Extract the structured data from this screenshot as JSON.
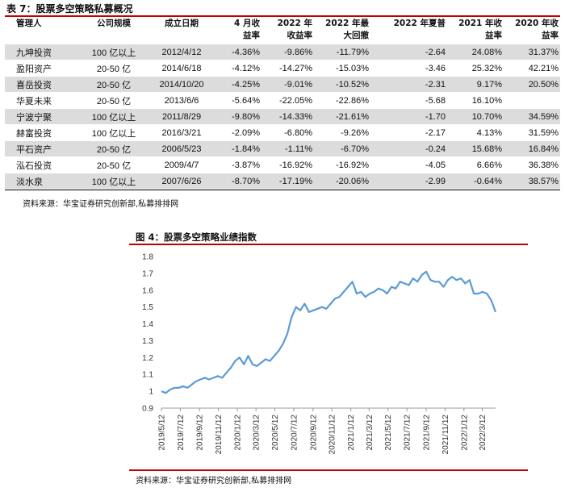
{
  "table": {
    "title": "表 7：股票多空策略私募概况",
    "headers": [
      [
        "管理人"
      ],
      [
        "公司规模"
      ],
      [
        "成立日期"
      ],
      [
        "4 月收",
        "益率"
      ],
      [
        "2022 年",
        "收益率"
      ],
      [
        "2022 年最",
        "大回撤"
      ],
      [
        "2022 年夏普"
      ],
      [
        "2021 年收",
        "益率"
      ],
      [
        "2020 年收",
        "益率"
      ]
    ],
    "rows": [
      [
        "九坤投资",
        "100 亿以上",
        "2012/4/12",
        "-4.36%",
        "-9.86%",
        "-11.79%",
        "-2.64",
        "24.08%",
        "31.37%"
      ],
      [
        "盈阳资产",
        "20-50 亿",
        "2014/6/18",
        "-4.12%",
        "-14.27%",
        "-15.03%",
        "-3.46",
        "25.32%",
        "42.21%"
      ],
      [
        "喜岳投资",
        "20-50 亿",
        "2014/10/20",
        "-4.25%",
        "-9.01%",
        "-10.52%",
        "-2.31",
        "9.17%",
        "20.50%"
      ],
      [
        "华夏未来",
        "20-50 亿",
        "2013/6/6",
        "-5.64%",
        "-22.05%",
        "-22.86%",
        "-5.68",
        "16.10%",
        ""
      ],
      [
        "宁波宁聚",
        "100 亿以上",
        "2011/8/29",
        "-9.80%",
        "-14.33%",
        "-21.61%",
        "-1.70",
        "10.70%",
        "34.59%"
      ],
      [
        "赫富投资",
        "100 亿以上",
        "2016/3/21",
        "-2.09%",
        "-6.80%",
        "-9.26%",
        "-2.17",
        "4.13%",
        "31.59%"
      ],
      [
        "平石资产",
        "20-50 亿",
        "2006/5/23",
        "-1.84%",
        "-1.11%",
        "-6.70%",
        "-0.24",
        "15.68%",
        "16.84%"
      ],
      [
        "泓石投资",
        "20-50 亿",
        "2009/4/7",
        "-3.87%",
        "-16.92%",
        "-16.92%",
        "-4.05",
        "6.66%",
        "36.38%"
      ],
      [
        "淡水泉",
        "100 亿以上",
        "2007/6/26",
        "-8.70%",
        "-17.19%",
        "-20.06%",
        "-2.99",
        "-0.64%",
        "38.57%"
      ]
    ],
    "source": "资料来源：华宝证券研究创新部,私募排排网"
  },
  "figure": {
    "title": "图 4：股票多空策略业绩指数",
    "source": "资料来源：华宝证券研究创新部,私募排排网"
  },
  "colors": {
    "accent_red": "#c00000",
    "line": "#5b9bd5",
    "row_shade": "#dcdcdc"
  },
  "chart_data": {
    "type": "line",
    "title": "",
    "xlabel": "",
    "ylabel": "",
    "ylim": [
      0.9,
      1.8
    ],
    "yticks": [
      0.9,
      1,
      1.1,
      1.2,
      1.3,
      1.4,
      1.5,
      1.6,
      1.7,
      1.8
    ],
    "y_tick_labels": [
      "0.9",
      "1",
      "1.1",
      "1.2",
      "1.3",
      "1.4",
      "1.5",
      "1.6",
      "1.7",
      "1.8"
    ],
    "x_tick_labels": [
      "2019/5/12",
      "2019/7/12",
      "2019/9/12",
      "2019/11/12",
      "2020/1/12",
      "2020/3/12",
      "2020/5/12",
      "2020/7/12",
      "2020/9/12",
      "2020/11/12",
      "2021/1/12",
      "2021/3/12",
      "2021/5/12",
      "2021/7/12",
      "2021/9/12",
      "2021/11/12",
      "2022/1/12",
      "2022/3/12"
    ],
    "grid": false,
    "series": [
      {
        "name": "",
        "x": [
          "2019/5/12",
          "2019/5/26",
          "2019/6/9",
          "2019/6/23",
          "2019/7/7",
          "2019/7/21",
          "2019/8/4",
          "2019/8/18",
          "2019/9/1",
          "2019/9/15",
          "2019/9/29",
          "2019/10/13",
          "2019/10/27",
          "2019/11/10",
          "2019/11/24",
          "2019/12/8",
          "2019/12/22",
          "2020/1/5",
          "2020/1/19",
          "2020/2/2",
          "2020/2/16",
          "2020/3/1",
          "2020/3/15",
          "2020/3/29",
          "2020/4/12",
          "2020/4/26",
          "2020/5/10",
          "2020/5/24",
          "2020/6/7",
          "2020/6/21",
          "2020/7/5",
          "2020/7/19",
          "2020/8/2",
          "2020/8/16",
          "2020/8/30",
          "2020/9/13",
          "2020/9/27",
          "2020/10/11",
          "2020/10/25",
          "2020/11/8",
          "2020/11/22",
          "2020/12/6",
          "2020/12/20",
          "2021/1/3",
          "2021/1/17",
          "2021/1/31",
          "2021/2/14",
          "2021/2/28",
          "2021/3/14",
          "2021/3/28",
          "2021/4/11",
          "2021/4/25",
          "2021/5/9",
          "2021/5/23",
          "2021/6/6",
          "2021/6/20",
          "2021/7/4",
          "2021/7/18",
          "2021/8/1",
          "2021/8/15",
          "2021/8/29",
          "2021/9/12",
          "2021/9/26",
          "2021/10/10",
          "2021/10/24",
          "2021/11/7",
          "2021/11/21",
          "2021/12/5",
          "2021/12/19",
          "2022/1/2",
          "2022/1/16",
          "2022/1/30",
          "2022/2/13",
          "2022/2/27",
          "2022/3/13",
          "2022/3/27",
          "2022/4/10",
          "2022/4/24"
        ],
        "y": [
          1.0,
          0.99,
          1.01,
          1.02,
          1.02,
          1.03,
          1.02,
          1.04,
          1.06,
          1.07,
          1.08,
          1.07,
          1.08,
          1.09,
          1.08,
          1.11,
          1.14,
          1.18,
          1.2,
          1.16,
          1.21,
          1.16,
          1.15,
          1.17,
          1.19,
          1.18,
          1.21,
          1.24,
          1.28,
          1.34,
          1.44,
          1.5,
          1.48,
          1.52,
          1.47,
          1.48,
          1.49,
          1.5,
          1.49,
          1.52,
          1.55,
          1.56,
          1.59,
          1.62,
          1.65,
          1.58,
          1.59,
          1.56,
          1.58,
          1.59,
          1.61,
          1.6,
          1.58,
          1.62,
          1.61,
          1.65,
          1.64,
          1.63,
          1.67,
          1.65,
          1.69,
          1.71,
          1.66,
          1.65,
          1.65,
          1.62,
          1.66,
          1.68,
          1.66,
          1.67,
          1.64,
          1.66,
          1.58,
          1.58,
          1.59,
          1.58,
          1.54,
          1.47
        ]
      }
    ]
  }
}
